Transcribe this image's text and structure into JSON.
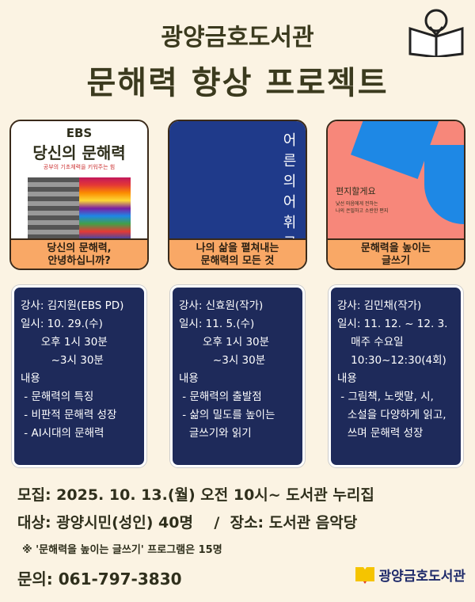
{
  "header": {
    "library": "광양금호도서관",
    "project": "문해력 향상 프로젝트"
  },
  "books": [
    {
      "cover_brand": "EBS",
      "cover_title": "당신의 문해력",
      "cover_subtitle": "공부의 기초체력을 키워주는 힘",
      "label": "당신의 문해력,\n안녕하십니까?"
    },
    {
      "cover_title": "어른의 어휘 공부",
      "label": "나의 삶을 펼쳐내는\n문해력의 모든 것"
    },
    {
      "cover_title": "편지할게요",
      "cover_subtitle": "낯선 마음에게 전하는\n나의 은밀하고 소란한 편지",
      "label": "문해력을 높이는\n글쓰기"
    }
  ],
  "sessions": [
    {
      "text": "강사: 김지원(EBS PD)\n일시: 10. 29.(수)\n      오후 1시 30분\n         ~3시 30분\n내용\n - 문해력의 특징\n - 비판적 문해력 성장\n - AI시대의 문해력"
    },
    {
      "text": "강사: 신효원(작가)\n일시: 11. 5.(수)\n       오후 1시 30분\n          ~3시 30분\n내용\n - 문해력의 출발점\n - 삶의 밀도를 높이는\n   글쓰기와 읽기"
    },
    {
      "text": "강사: 김민채(작가)\n일시: 11. 12. ~ 12. 3.\n    매주 수요일\n    10:30~12:30(4회)\n내용\n - 그림책, 노랫말, 시,\n   소설을 다양하게 읽고,\n   쓰며 문해력 성장"
    }
  ],
  "footer": {
    "recruit": "모집: 2025. 10. 13.(월) 오전 10시~ 도서관 누리집",
    "target": "대상: 광양시민(성인) 40명    /  장소: 도서관 음악당",
    "note": "※ '문해력을 높이는 글쓰기' 프로그램은 15명",
    "contact": "문의: 061-797-3830",
    "logo_text": "광양금호도서관"
  },
  "colors": {
    "background": "#fbf3e3",
    "card": "#1e2a5a",
    "label": "#f9a866"
  }
}
